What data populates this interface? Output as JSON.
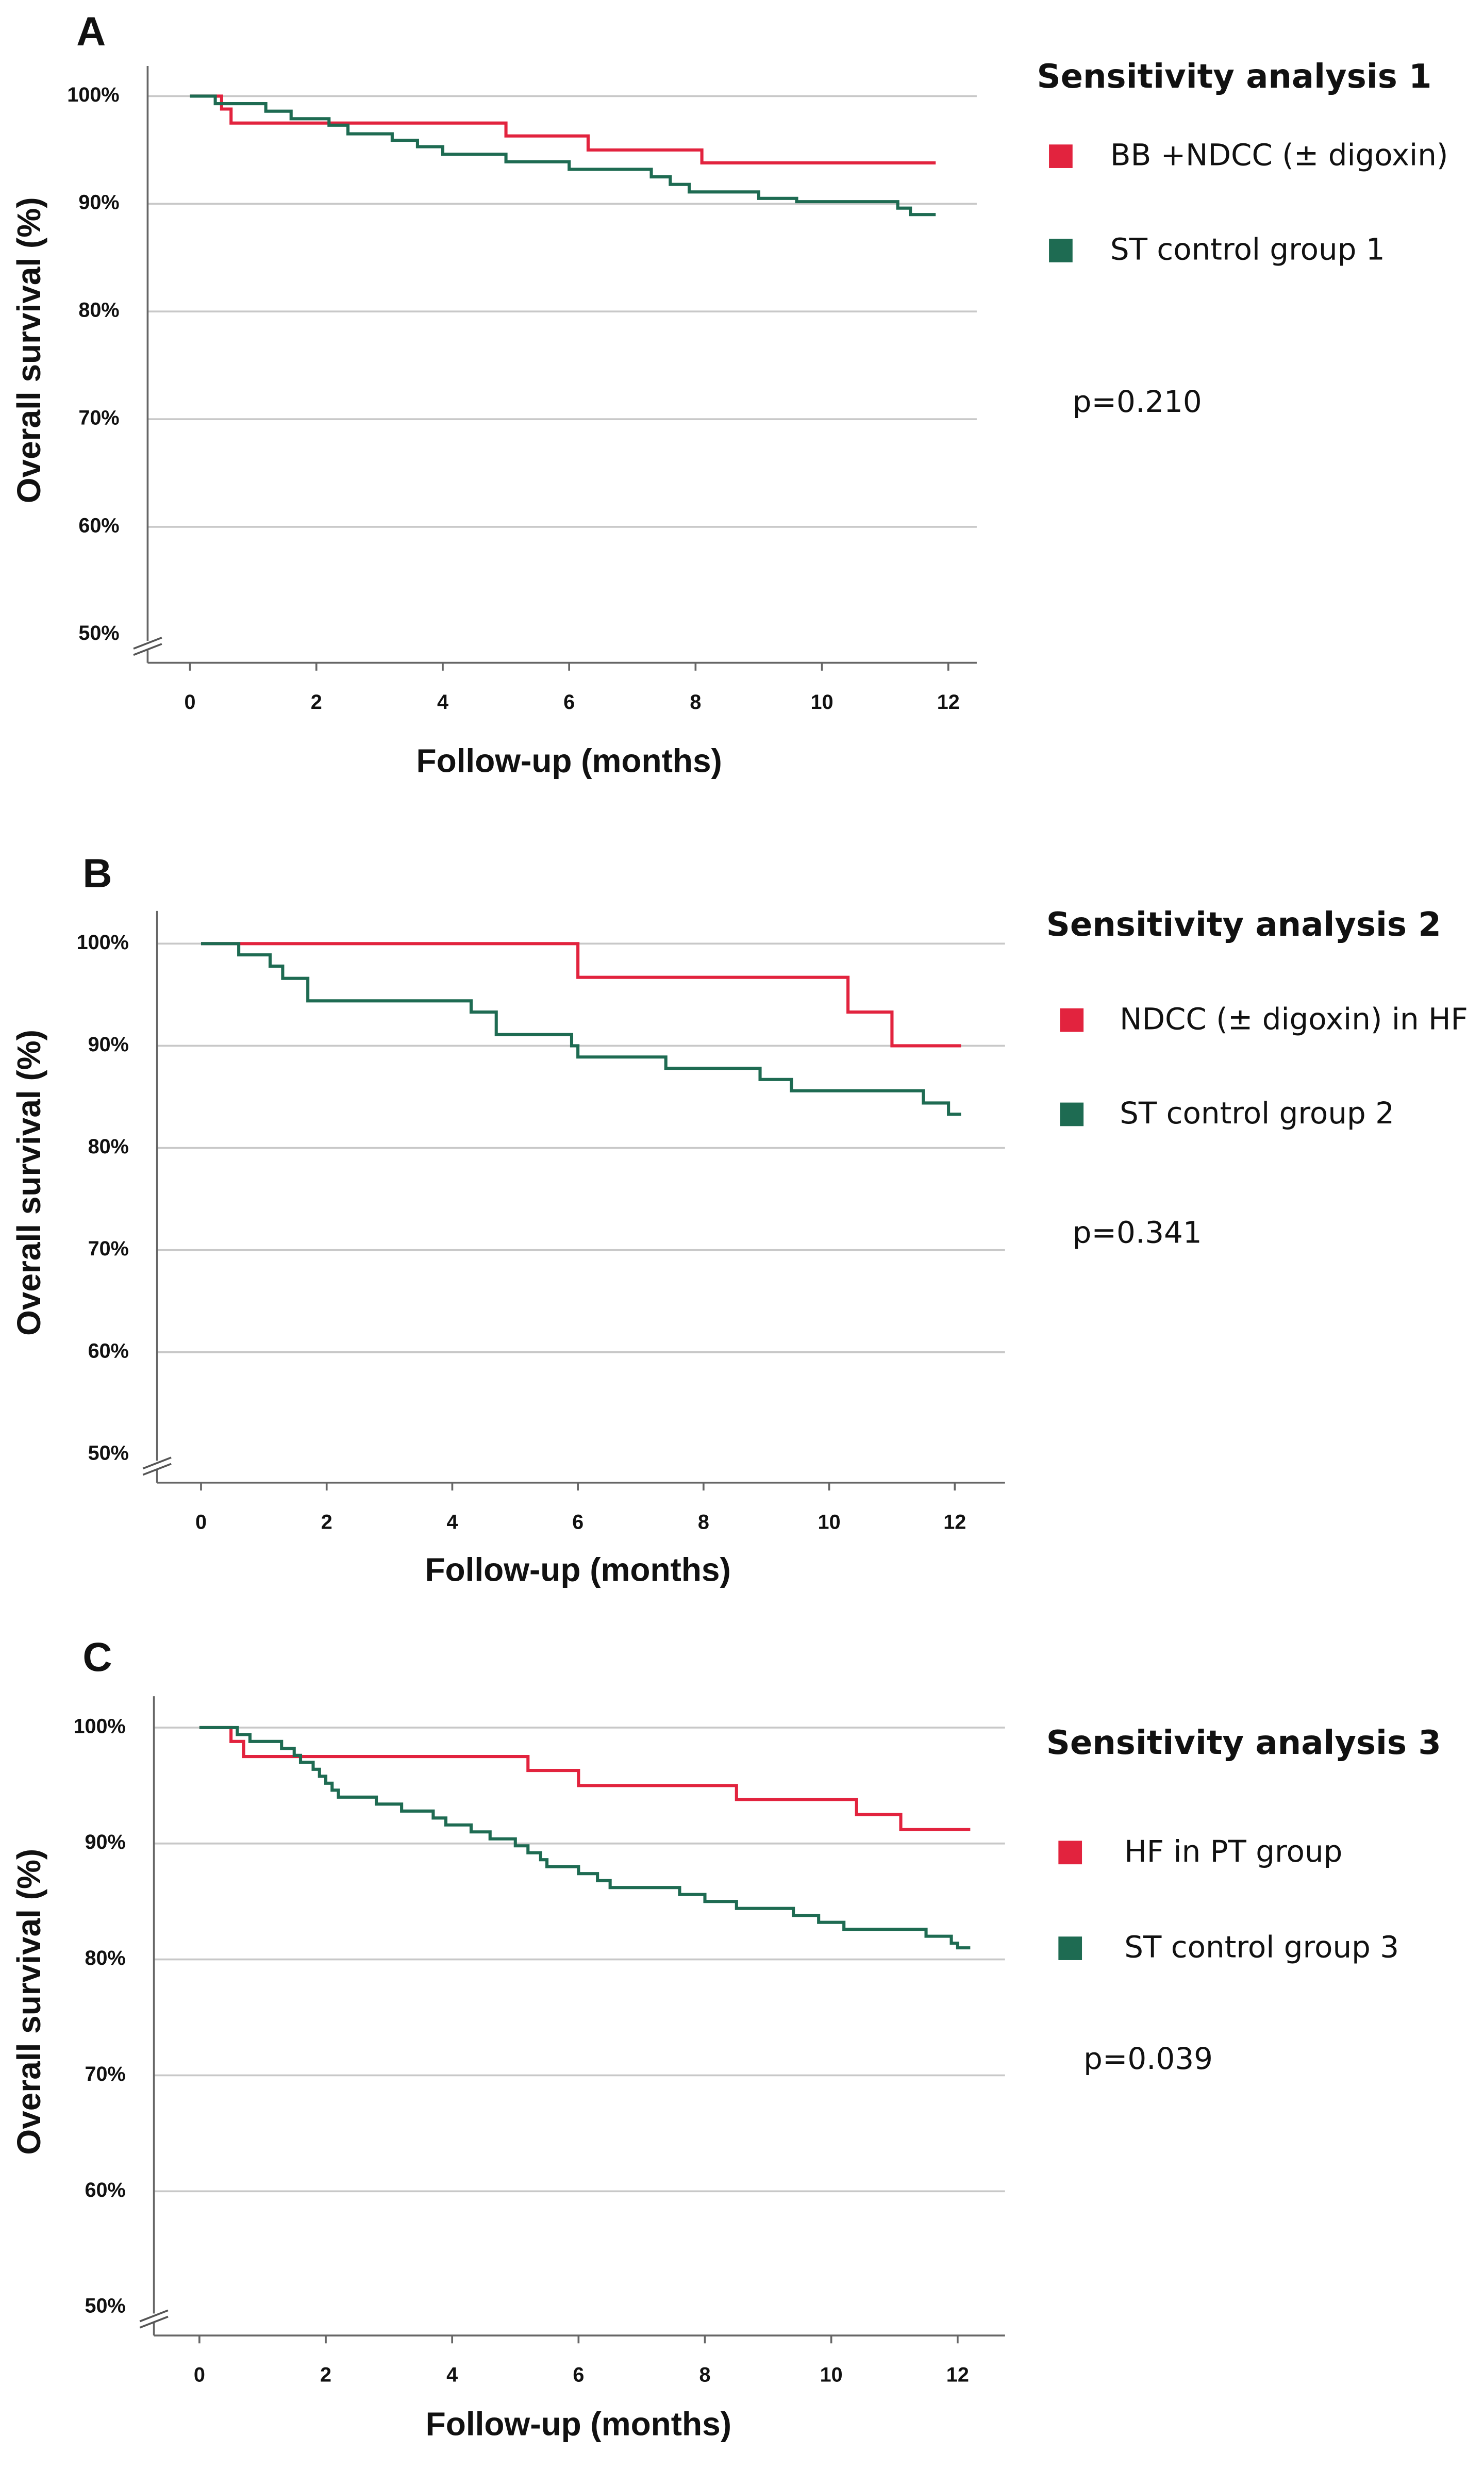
{
  "chart_data": [
    {
      "type": "line",
      "step": "post",
      "panel": "A",
      "title": "Sensitivity analysis 1",
      "annotation": "p=0.210",
      "xlabel": "Follow-up (months)",
      "ylabel": "Overall survival (%)",
      "xlim": [
        -0.67,
        12.45
      ],
      "xticks": [
        0,
        2,
        4,
        6,
        8,
        10,
        12
      ],
      "ylim": [
        50,
        102.8
      ],
      "yticks": [
        {
          "value": 50,
          "label": "50%"
        },
        {
          "value": 60,
          "label": "60%"
        },
        {
          "value": 70,
          "label": "70%"
        },
        {
          "value": 80,
          "label": "80%"
        },
        {
          "value": 90,
          "label": "90%"
        },
        {
          "value": 100,
          "label": "100%"
        }
      ],
      "grid": true,
      "series": [
        {
          "name": "BB +NDCC (± digoxin)",
          "color": "#e2233e",
          "x": [
            0,
            0.5,
            0.65,
            5.0,
            6.3,
            8.1,
            11.8
          ],
          "values": [
            100,
            98.8,
            97.5,
            96.3,
            95.0,
            93.8,
            93.8
          ]
        },
        {
          "name": "ST control group 1",
          "color": "#1e6b52",
          "x": [
            0,
            0.4,
            1.2,
            1.6,
            2.2,
            2.5,
            3.2,
            3.6,
            4.0,
            5.0,
            6.0,
            7.3,
            7.6,
            7.9,
            9.0,
            9.6,
            11.2,
            11.4,
            11.8
          ],
          "values": [
            100,
            99.3,
            98.6,
            97.9,
            97.3,
            96.5,
            95.9,
            95.3,
            94.6,
            93.9,
            93.2,
            92.5,
            91.8,
            91.1,
            90.5,
            90.2,
            89.6,
            89.0,
            89.0
          ]
        }
      ]
    },
    {
      "type": "line",
      "step": "post",
      "panel": "B",
      "title": "Sensitivity analysis 2",
      "annotation": "p=0.341",
      "xlabel": "Follow-up (months)",
      "ylabel": "Overall survival (%)",
      "xlim": [
        -0.7,
        12.8
      ],
      "xticks": [
        0,
        2,
        4,
        6,
        8,
        10,
        12
      ],
      "ylim": [
        50,
        103.2
      ],
      "yticks": [
        {
          "value": 50,
          "label": "50%"
        },
        {
          "value": 60,
          "label": "60%"
        },
        {
          "value": 70,
          "label": "70%"
        },
        {
          "value": 80,
          "label": "80%"
        },
        {
          "value": 90,
          "label": "90%"
        },
        {
          "value": 100,
          "label": "100%"
        }
      ],
      "grid": true,
      "series": [
        {
          "name": "NDCC (± digoxin) in HF",
          "color": "#e2233e",
          "x": [
            0,
            6.0,
            10.3,
            11.0,
            12.1
          ],
          "values": [
            100,
            96.7,
            93.3,
            90.0,
            90.0
          ]
        },
        {
          "name": "ST control group 2",
          "color": "#1e6b52",
          "x": [
            0,
            0.6,
            1.1,
            1.3,
            1.7,
            4.3,
            4.7,
            5.9,
            6.0,
            7.4,
            8.9,
            9.4,
            11.5,
            11.9,
            12.1
          ],
          "values": [
            100,
            98.9,
            97.8,
            96.6,
            94.4,
            93.3,
            91.1,
            90.0,
            88.9,
            87.8,
            86.7,
            85.6,
            84.4,
            83.3,
            83.3
          ]
        }
      ]
    },
    {
      "type": "line",
      "step": "post",
      "panel": "C",
      "title": "Sensitivity analysis 3",
      "annotation": "p=0.039",
      "xlabel": "Follow-up (months)",
      "ylabel": "Overall survival (%)",
      "xlim": [
        -0.72,
        12.75
      ],
      "xticks": [
        0,
        2,
        4,
        6,
        8,
        10,
        12
      ],
      "ylim": [
        50,
        102.7
      ],
      "yticks": [
        {
          "value": 50,
          "label": "50%"
        },
        {
          "value": 60,
          "label": "60%"
        },
        {
          "value": 70,
          "label": "70%"
        },
        {
          "value": 80,
          "label": "80%"
        },
        {
          "value": 90,
          "label": "90%"
        },
        {
          "value": 100,
          "label": "100%"
        }
      ],
      "grid": true,
      "series": [
        {
          "name": "HF in PT group",
          "color": "#e2233e",
          "x": [
            0,
            0.5,
            0.7,
            5.2,
            6.0,
            8.5,
            10.4,
            11.1,
            12.2
          ],
          "values": [
            100,
            98.8,
            97.5,
            96.3,
            95.0,
            93.8,
            92.5,
            91.2,
            91.2
          ]
        },
        {
          "name": "ST control group 3",
          "color": "#1e6b52",
          "x": [
            0,
            0.6,
            0.8,
            1.3,
            1.5,
            1.6,
            1.8,
            1.9,
            2.0,
            2.1,
            2.2,
            2.8,
            3.2,
            3.7,
            3.9,
            4.3,
            4.6,
            5.0,
            5.2,
            5.4,
            5.5,
            6.0,
            6.3,
            6.5,
            7.6,
            8.0,
            8.5,
            9.4,
            9.8,
            10.2,
            11.5,
            11.9,
            12.0,
            12.2
          ],
          "values": [
            100,
            99.4,
            98.8,
            98.2,
            97.6,
            97.0,
            96.4,
            95.8,
            95.2,
            94.6,
            94.0,
            93.4,
            92.8,
            92.2,
            91.6,
            91.0,
            90.4,
            89.8,
            89.2,
            88.6,
            88.0,
            87.4,
            86.8,
            86.2,
            85.6,
            85.0,
            84.4,
            83.8,
            83.2,
            82.6,
            82.0,
            81.4,
            81.0,
            81.0
          ]
        }
      ]
    }
  ]
}
